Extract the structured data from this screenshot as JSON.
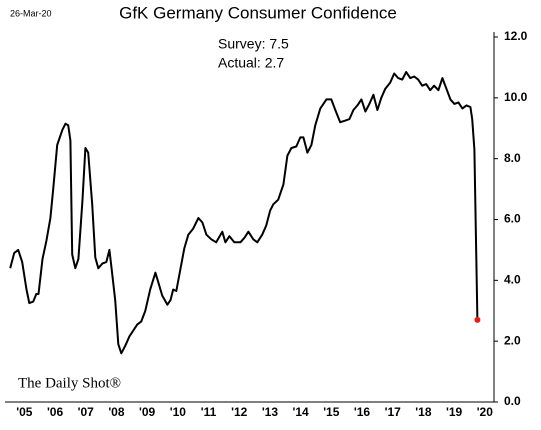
{
  "chart_data": {
    "type": "line",
    "title": "GfK Germany Consumer Confidence",
    "date_label": "26-Mar-20",
    "annotations": [
      "Survey: 7.5",
      "Actual:  2.7"
    ],
    "source": "The Daily Shot®",
    "series": [
      {
        "name": "GfK Germany Consumer Confidence",
        "color": "#000000",
        "last_point_color": "#e8191a",
        "x": [
          2005.04,
          2005.17,
          2005.3,
          2005.43,
          2005.57,
          2005.66,
          2005.79,
          2005.89,
          2005.96,
          2006.09,
          2006.22,
          2006.35,
          2006.44,
          2006.57,
          2006.74,
          2006.84,
          2006.93,
          2007.0,
          2007.06,
          2007.16,
          2007.26,
          2007.39,
          2007.49,
          2007.58,
          2007.71,
          2007.81,
          2007.91,
          2008.04,
          2008.17,
          2008.27,
          2008.33,
          2008.46,
          2008.56,
          2008.66,
          2008.79,
          2008.92,
          2009.05,
          2009.18,
          2009.31,
          2009.44,
          2009.6,
          2009.77,
          2009.86,
          2009.99,
          2010.16,
          2010.26,
          2010.35,
          2010.45,
          2010.58,
          2010.71,
          2010.84,
          2011.0,
          2011.17,
          2011.3,
          2011.43,
          2011.59,
          2011.75,
          2011.95,
          2012.05,
          2012.18,
          2012.34,
          2012.54,
          2012.67,
          2012.8,
          2012.96,
          2013.09,
          2013.25,
          2013.38,
          2013.51,
          2013.61,
          2013.77,
          2013.94,
          2014.07,
          2014.2,
          2014.36,
          2014.49,
          2014.59,
          2014.72,
          2014.85,
          2014.98,
          2015.14,
          2015.34,
          2015.5,
          2015.63,
          2015.79,
          2015.96,
          2016.09,
          2016.22,
          2016.35,
          2016.48,
          2016.61,
          2016.74,
          2016.87,
          2017.0,
          2017.13,
          2017.26,
          2017.42,
          2017.55,
          2017.68,
          2017.81,
          2017.94,
          2018.07,
          2018.2,
          2018.33,
          2018.46,
          2018.59,
          2018.72,
          2018.85,
          2018.99,
          2019.12,
          2019.25,
          2019.38,
          2019.51,
          2019.64,
          2019.77,
          2019.9,
          2020.03,
          2020.09,
          2020.16,
          2020.26
        ],
        "values": [
          4.4,
          4.9,
          5.0,
          4.6,
          3.7,
          3.25,
          3.3,
          3.55,
          3.55,
          4.7,
          5.3,
          6.05,
          7.0,
          8.45,
          8.95,
          9.15,
          9.1,
          8.6,
          4.85,
          4.4,
          4.7,
          6.6,
          8.35,
          8.2,
          6.5,
          4.75,
          4.4,
          4.55,
          4.6,
          5.0,
          4.5,
          3.35,
          1.9,
          1.6,
          1.85,
          2.15,
          2.35,
          2.55,
          2.65,
          3.0,
          3.7,
          4.25,
          3.95,
          3.5,
          3.2,
          3.35,
          3.7,
          3.65,
          4.35,
          5.05,
          5.5,
          5.7,
          6.05,
          5.9,
          5.5,
          5.35,
          5.25,
          5.6,
          5.25,
          5.45,
          5.25,
          5.25,
          5.4,
          5.6,
          5.35,
          5.25,
          5.5,
          5.8,
          6.3,
          6.5,
          6.65,
          7.15,
          8.1,
          8.35,
          8.4,
          8.7,
          8.7,
          8.2,
          8.45,
          9.1,
          9.65,
          9.95,
          9.95,
          9.6,
          9.2,
          9.25,
          9.3,
          9.6,
          9.75,
          9.95,
          9.55,
          9.8,
          10.1,
          9.6,
          10.0,
          10.3,
          10.5,
          10.8,
          10.65,
          10.6,
          10.85,
          10.65,
          10.7,
          10.6,
          10.4,
          10.45,
          10.25,
          10.4,
          10.25,
          10.65,
          10.3,
          9.95,
          9.8,
          9.85,
          9.65,
          9.75,
          9.7,
          9.3,
          8.3,
          2.7
        ]
      }
    ],
    "xlim": [
      2005,
      2020.8
    ],
    "xticks": [
      {
        "value": 2005.5,
        "label": "'05"
      },
      {
        "value": 2006.5,
        "label": "'06"
      },
      {
        "value": 2007.5,
        "label": "'07"
      },
      {
        "value": 2008.5,
        "label": "'08"
      },
      {
        "value": 2009.5,
        "label": "'09"
      },
      {
        "value": 2010.5,
        "label": "'10"
      },
      {
        "value": 2011.5,
        "label": "'11"
      },
      {
        "value": 2012.5,
        "label": "'12"
      },
      {
        "value": 2013.5,
        "label": "'13"
      },
      {
        "value": 2014.5,
        "label": "'14"
      },
      {
        "value": 2015.5,
        "label": "'15"
      },
      {
        "value": 2016.5,
        "label": "'16"
      },
      {
        "value": 2017.5,
        "label": "'17"
      },
      {
        "value": 2018.5,
        "label": "'18"
      },
      {
        "value": 2019.5,
        "label": "'19"
      },
      {
        "value": 2020.5,
        "label": "'20"
      }
    ],
    "ylim": [
      0,
      12
    ],
    "yticks": [
      {
        "value": 0,
        "label": "0.0"
      },
      {
        "value": 2,
        "label": "2.0"
      },
      {
        "value": 4,
        "label": "4.0"
      },
      {
        "value": 6,
        "label": "6.0"
      },
      {
        "value": 8,
        "label": "8.0"
      },
      {
        "value": 10,
        "label": "10.0"
      },
      {
        "value": 12,
        "label": "12.0"
      }
    ],
    "grid": false
  }
}
